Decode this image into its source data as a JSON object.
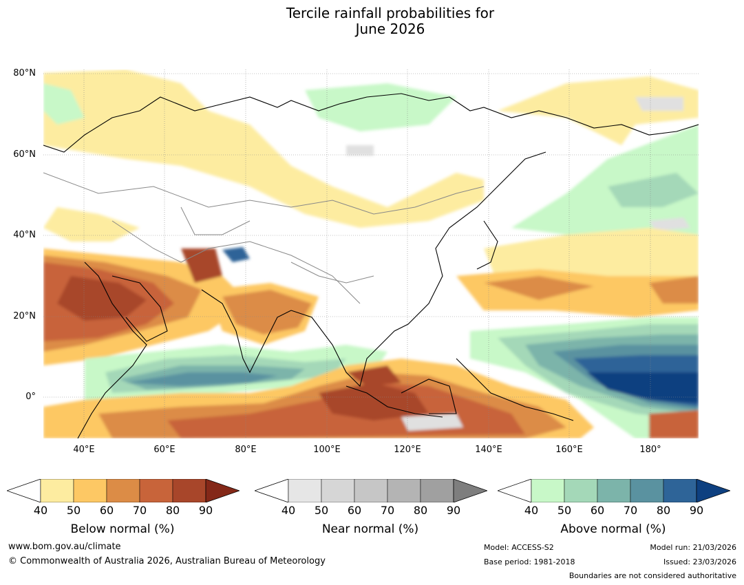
{
  "title_line1": "Tercile rainfall probabilities for",
  "title_line2": "June 2026",
  "lat_labels": [
    "80°N",
    "60°N",
    "40°N",
    "20°N",
    "0°"
  ],
  "lon_labels": [
    "40°E",
    "60°E",
    "80°E",
    "100°E",
    "120°E",
    "140°E",
    "160°E",
    "180°"
  ],
  "colorbars": [
    {
      "name": "below",
      "title": "Below normal (%)",
      "ticks": [
        "40",
        "50",
        "60",
        "70",
        "80",
        "90"
      ],
      "colors": [
        "#ffffff",
        "#fdeca0",
        "#fdc864",
        "#dc8c46",
        "#c8643a",
        "#a8462a",
        "#842818"
      ]
    },
    {
      "name": "near",
      "title": "Near normal (%)",
      "ticks": [
        "40",
        "50",
        "60",
        "70",
        "80",
        "90"
      ],
      "colors": [
        "#ffffff",
        "#e6e6e6",
        "#d6d6d6",
        "#c6c6c6",
        "#b4b4b4",
        "#a0a0a0",
        "#7e7e7e"
      ]
    },
    {
      "name": "above",
      "title": "Above normal (%)",
      "ticks": [
        "40",
        "50",
        "60",
        "70",
        "80",
        "90"
      ],
      "colors": [
        "#ffffff",
        "#c8f8c8",
        "#a4d8b8",
        "#7cb4aa",
        "#5a92a0",
        "#2e6498",
        "#0e4080"
      ]
    }
  ],
  "footer": {
    "website": "www.bom.gov.au/climate",
    "copyright": "© Commonwealth of Australia 2026, Australian Bureau of Meteorology",
    "model": "Model: ACCESS-S2",
    "base_period": "Base period: 1981-2018",
    "model_run": "Model run: 21/03/2026",
    "issued": "Issued: 23/03/2026",
    "boundaries": "Boundaries are not considered authoritative"
  }
}
